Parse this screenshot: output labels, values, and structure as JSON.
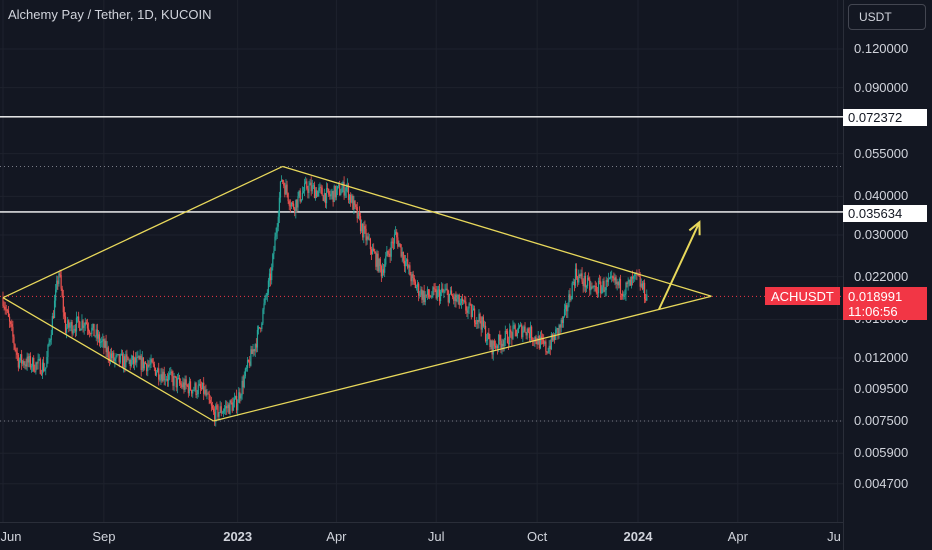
{
  "header": {
    "title": "Alchemy Pay / Tether, 1D, KUCOIN",
    "currency": "USDT"
  },
  "y_ticks": [
    "0.120000",
    "0.090000",
    "0.055000",
    "0.040000",
    "0.030000",
    "0.022000",
    "0.016000",
    "0.012000",
    "0.009500",
    "0.007500",
    "0.005900",
    "0.004700"
  ],
  "x_ticks": [
    {
      "label": "Jun",
      "bold": false
    },
    {
      "label": "Sep",
      "bold": false
    },
    {
      "label": "2023",
      "bold": true
    },
    {
      "label": "Apr",
      "bold": false
    },
    {
      "label": "Jul",
      "bold": false
    },
    {
      "label": "Oct",
      "bold": false
    },
    {
      "label": "2024",
      "bold": true
    },
    {
      "label": "Apr",
      "bold": false
    },
    {
      "label": "Ju",
      "bold": false
    }
  ],
  "levels": {
    "upper": "0.072372",
    "lower": "0.035634"
  },
  "price": {
    "symbol": "ACHUSDT",
    "value": "0.018991",
    "countdown": "11:06:56"
  },
  "colors": {
    "up": "#26a69a",
    "down": "#ef5350",
    "pattern": "#e8d85b",
    "level": "#ffffff",
    "price": "#f23645"
  },
  "chart_data": {
    "type": "candlestick",
    "title": "Alchemy Pay / Tether, 1D, KUCOIN",
    "scale": "log",
    "ylim": [
      0.0043,
      0.16
    ],
    "horizontal_levels": [
      0.072372,
      0.035634
    ],
    "last_price": 0.018991,
    "close_path": [
      {
        "x": "2022-06-01",
        "y": 0.0188
      },
      {
        "x": "2022-06-15",
        "y": 0.0118
      },
      {
        "x": "2022-07-10",
        "y": 0.0112
      },
      {
        "x": "2022-07-22",
        "y": 0.0228
      },
      {
        "x": "2022-07-28",
        "y": 0.015
      },
      {
        "x": "2022-08-15",
        "y": 0.0158
      },
      {
        "x": "2022-09-10",
        "y": 0.0118
      },
      {
        "x": "2022-10-10",
        "y": 0.0115
      },
      {
        "x": "2022-11-10",
        "y": 0.0098
      },
      {
        "x": "2022-12-01",
        "y": 0.0094
      },
      {
        "x": "2022-12-10",
        "y": 0.0079
      },
      {
        "x": "2022-12-31",
        "y": 0.0086
      },
      {
        "x": "2023-01-20",
        "y": 0.0145
      },
      {
        "x": "2023-02-01",
        "y": 0.023
      },
      {
        "x": "2023-02-10",
        "y": 0.046
      },
      {
        "x": "2023-02-20",
        "y": 0.037
      },
      {
        "x": "2023-03-05",
        "y": 0.043
      },
      {
        "x": "2023-03-25",
        "y": 0.04
      },
      {
        "x": "2023-04-10",
        "y": 0.043
      },
      {
        "x": "2023-04-25",
        "y": 0.031
      },
      {
        "x": "2023-05-12",
        "y": 0.023
      },
      {
        "x": "2023-05-25",
        "y": 0.03
      },
      {
        "x": "2023-06-10",
        "y": 0.021
      },
      {
        "x": "2023-06-20",
        "y": 0.019
      },
      {
        "x": "2023-07-10",
        "y": 0.0195
      },
      {
        "x": "2023-08-10",
        "y": 0.016
      },
      {
        "x": "2023-08-20",
        "y": 0.013
      },
      {
        "x": "2023-09-10",
        "y": 0.0145
      },
      {
        "x": "2023-09-20",
        "y": 0.015
      },
      {
        "x": "2023-10-10",
        "y": 0.0128
      },
      {
        "x": "2023-10-25",
        "y": 0.0158
      },
      {
        "x": "2023-11-05",
        "y": 0.0225
      },
      {
        "x": "2023-11-20",
        "y": 0.02
      },
      {
        "x": "2023-12-10",
        "y": 0.021
      },
      {
        "x": "2023-12-20",
        "y": 0.02
      },
      {
        "x": "2023-12-31",
        "y": 0.0218
      },
      {
        "x": "2024-01-09",
        "y": 0.019
      }
    ],
    "pattern_lines": [
      {
        "from": {
          "x": "2022-06-01",
          "y": 0.0188
        },
        "to": {
          "x": "2023-02-11",
          "y": 0.05
        }
      },
      {
        "from": {
          "x": "2022-06-01",
          "y": 0.0188
        },
        "to": {
          "x": "2022-12-10",
          "y": 0.0075
        }
      },
      {
        "from": {
          "x": "2022-12-10",
          "y": 0.0075
        },
        "to": {
          "x": "2024-03-08",
          "y": 0.019
        }
      },
      {
        "from": {
          "x": "2023-02-11",
          "y": 0.05
        },
        "to": {
          "x": "2024-03-08",
          "y": 0.019
        }
      }
    ],
    "projection_arrow": {
      "from": {
        "x": "2024-01-20",
        "y": 0.0172
      },
      "to": {
        "x": "2024-02-26",
        "y": 0.033
      }
    }
  }
}
